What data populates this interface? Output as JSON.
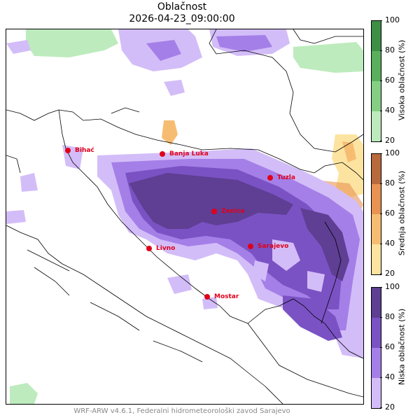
{
  "title": "Oblačnost",
  "subtitle": "2026-04-23_09:00:00",
  "footer": "WRF-ARW v4.6.1, Federalni hidrometeorološki zavod Sarajevo",
  "colorbars": [
    {
      "label": "Visoka oblačnost (%)",
      "ticks": [
        "100",
        "80",
        "60",
        "40",
        "20"
      ],
      "colors": [
        "#3c8f44",
        "#5aaf5c",
        "#84cf84",
        "#bdebbd"
      ]
    },
    {
      "label": "Srednja oblačnost (%)",
      "ticks": [
        "100",
        "80",
        "60",
        "40",
        "20"
      ],
      "colors": [
        "#b86a3c",
        "#e89352",
        "#f6bd72",
        "#fde3a0"
      ]
    },
    {
      "label": "Niska oblačnost (%)",
      "ticks": [
        "100",
        "80",
        "60",
        "40",
        "20"
      ],
      "colors": [
        "#5e3f93",
        "#7b52c4",
        "#a57fe8",
        "#d3bdf8"
      ]
    }
  ],
  "cities": [
    {
      "name": "Bihać"
    },
    {
      "name": "Banja Luka"
    },
    {
      "name": "Tuzla"
    },
    {
      "name": "Zenica"
    },
    {
      "name": "Livno"
    },
    {
      "name": "Sarajevo"
    },
    {
      "name": "Mostar"
    }
  ],
  "colors": {
    "city_marker": "#e0001a",
    "border": "#000000"
  }
}
